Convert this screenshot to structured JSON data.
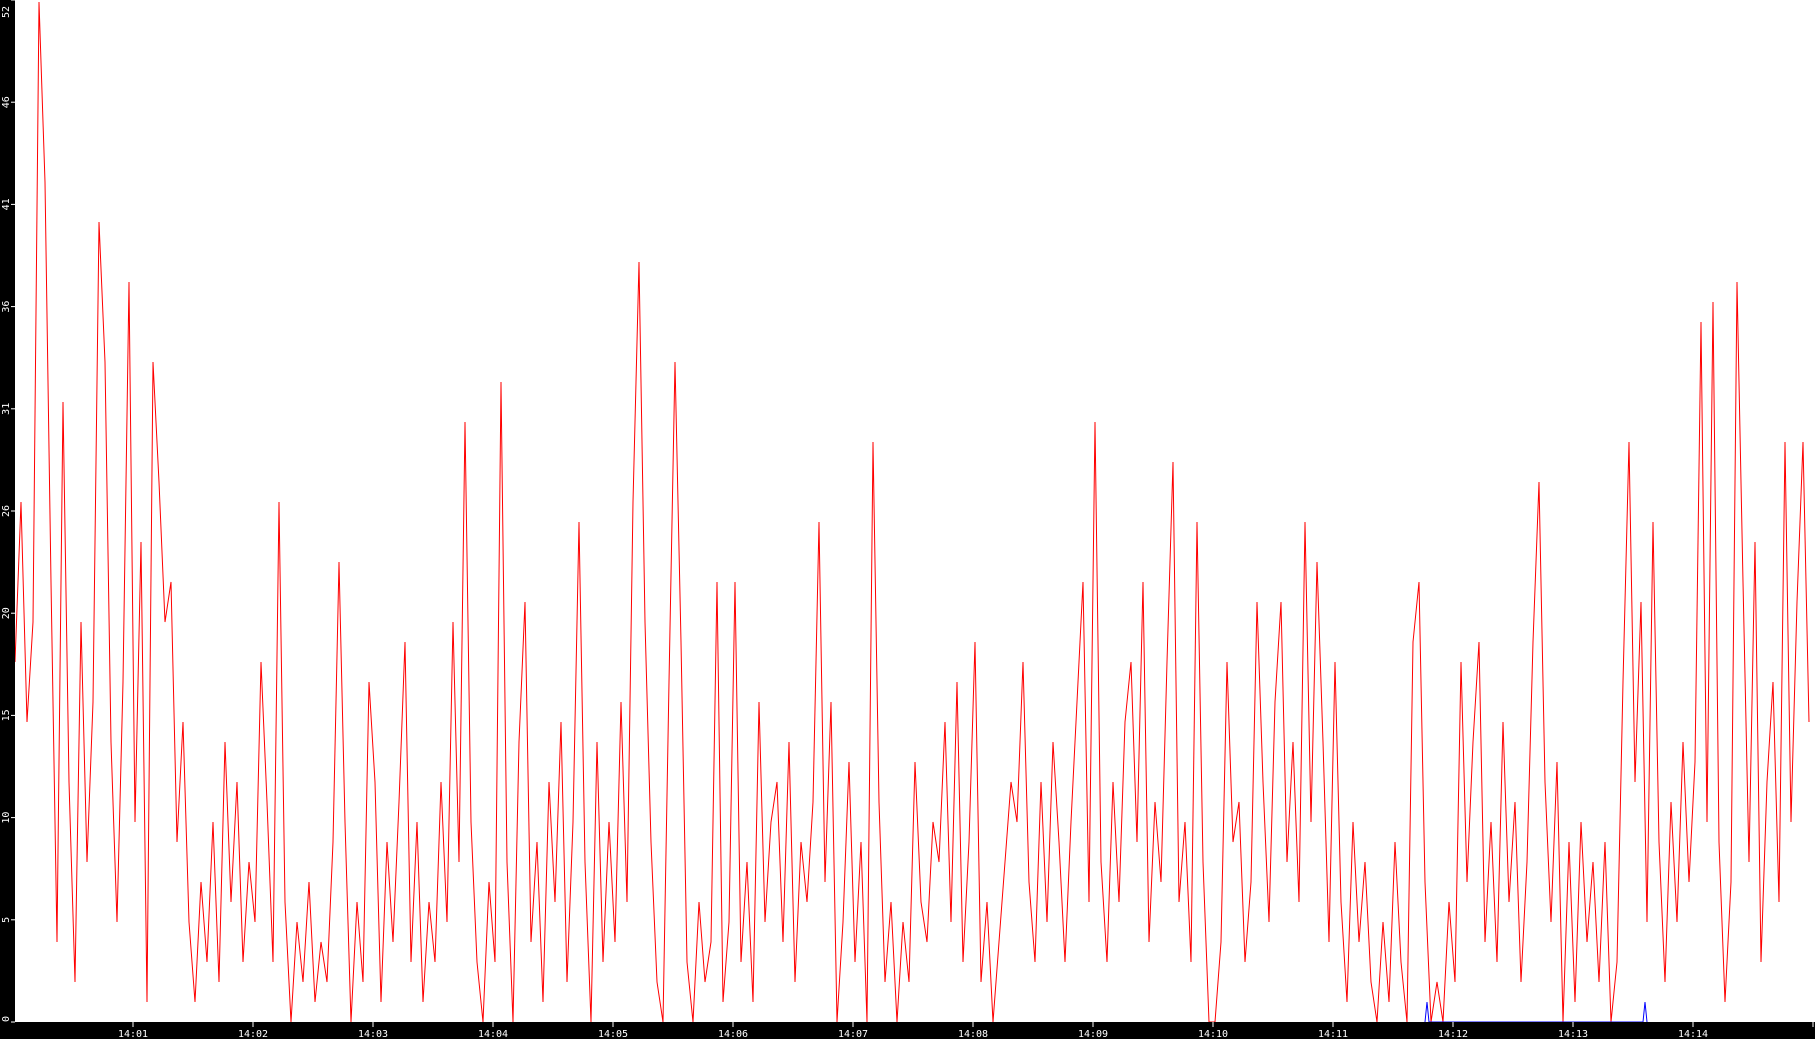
{
  "chart_data": {
    "type": "line",
    "title": "",
    "xlabel": "",
    "ylabel": "",
    "ylim": [
      0,
      51.1
    ],
    "grid": false,
    "background": "#ffffff",
    "axis_color": "#000000",
    "y_tick_labels": [
      "0",
      "5",
      "10",
      "15",
      "20",
      "26",
      "31",
      "36",
      "41",
      "46",
      "52"
    ],
    "x_tick_labels": [
      "14:01",
      "14:02",
      "14:03",
      "14:04",
      "14:05",
      "14:06",
      "14:07",
      "14:08",
      "14:09",
      "14:10",
      "14:11",
      "14:12",
      "14:13",
      "14:14"
    ],
    "series": [
      {
        "color": "#ff0000",
        "start_time": "14:00:01",
        "sample_interval_s": 3,
        "values": [
          18,
          26,
          15,
          20,
          51,
          42,
          22,
          4,
          31,
          12,
          2,
          20,
          8,
          16,
          40,
          33,
          14,
          5,
          17,
          37,
          10,
          24,
          1,
          33,
          27,
          20,
          22,
          9,
          15,
          5,
          1,
          7,
          3,
          10,
          2,
          14,
          6,
          12,
          3,
          8,
          5,
          18,
          11,
          3,
          26,
          6,
          0,
          5,
          2,
          7,
          1,
          4,
          2,
          9,
          23,
          10,
          0,
          6,
          2,
          17,
          12,
          1,
          9,
          4,
          11,
          19,
          3,
          10,
          1,
          6,
          3,
          12,
          5,
          20,
          8,
          30,
          10,
          3,
          0,
          7,
          3,
          32,
          8,
          0,
          14,
          21,
          4,
          9,
          1,
          12,
          6,
          15,
          2,
          10,
          25,
          8,
          0,
          14,
          3,
          10,
          4,
          16,
          6,
          26,
          38,
          20,
          9,
          2,
          0,
          17,
          33,
          19,
          3,
          0,
          6,
          2,
          4,
          22,
          1,
          5,
          22,
          3,
          8,
          1,
          16,
          5,
          10,
          12,
          4,
          14,
          2,
          9,
          6,
          11,
          25,
          7,
          16,
          0,
          5,
          13,
          3,
          9,
          0,
          29,
          11,
          2,
          6,
          0,
          5,
          2,
          13,
          6,
          4,
          10,
          8,
          15,
          5,
          17,
          3,
          9,
          19,
          2,
          6,
          0,
          4,
          8,
          12,
          10,
          18,
          7,
          3,
          12,
          5,
          14,
          9,
          3,
          10,
          16,
          22,
          6,
          30,
          8,
          3,
          12,
          6,
          15,
          18,
          9,
          22,
          4,
          11,
          7,
          18,
          28,
          6,
          10,
          3,
          25,
          8,
          0,
          0,
          4,
          18,
          9,
          11,
          3,
          7,
          21,
          12,
          5,
          16,
          21,
          8,
          14,
          6,
          25,
          10,
          23,
          14,
          4,
          18,
          6,
          1,
          10,
          4,
          8,
          2,
          0,
          5,
          1,
          9,
          3,
          0,
          19,
          22,
          7,
          0,
          2,
          0,
          6,
          2,
          18,
          7,
          14,
          19,
          4,
          10,
          3,
          15,
          6,
          11,
          2,
          8,
          19,
          27,
          12,
          5,
          13,
          0,
          9,
          1,
          10,
          4,
          8,
          2,
          9,
          0,
          3,
          17,
          29,
          12,
          21,
          5,
          25,
          9,
          2,
          11,
          5,
          14,
          7,
          13,
          35,
          10,
          36,
          9,
          1,
          7,
          37,
          22,
          8,
          24,
          3,
          12,
          17,
          6,
          29,
          10,
          21,
          29,
          15
        ]
      },
      {
        "color": "#0000ff",
        "points": [
          {
            "time": "14:11:46",
            "value": 0
          },
          {
            "time": "14:11:47",
            "value": 1
          },
          {
            "time": "14:11:48",
            "value": 0
          },
          {
            "time": "14:13:35",
            "value": 0
          },
          {
            "time": "14:13:36",
            "value": 1
          },
          {
            "time": "14:13:37",
            "value": 0
          }
        ]
      }
    ]
  }
}
